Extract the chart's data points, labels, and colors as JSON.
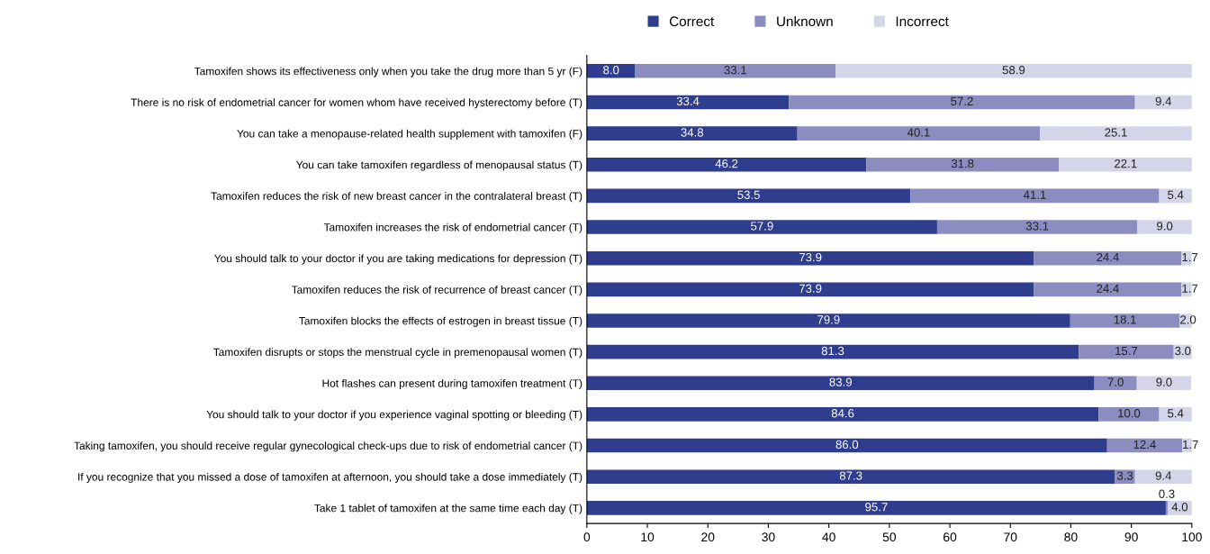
{
  "chart_data": {
    "type": "bar",
    "orientation": "horizontal",
    "stacked": true,
    "legend": "top",
    "grid": false,
    "categories": [
      "Tamoxifen shows its effectiveness only when you take the drug more than 5 yr (F)",
      "There is no risk of endometrial cancer for women whom have received hysterectomy before (T)",
      "You can take a menopause-related health supplement with tamoxifen (F)",
      "You can take tamoxifen regardless of menopausal status (T)",
      "Tamoxifen reduces the risk of new breast cancer in the contralateral breast (T)",
      "Tamoxifen increases the risk of endometrial cancer (T)",
      "You should talk to your doctor if you are taking medications for depression (T)",
      "Tamoxifen reduces the risk of recurrence of breast cancer (T)",
      "Tamoxifen blocks the effects of estrogen in breast tissue (T)",
      "Tamoxifen disrupts or stops the menstrual cycle in premenopausal women (T)",
      "Hot flashes can present during tamoxifen treatment (T)",
      "You should talk to your doctor if you experience vaginal spotting or bleeding (T)",
      "Taking tamoxifen, you should receive regular gynecological check-ups due to risk of endometrial cancer (T)",
      "If you recognize that you missed a dose of tamoxifen at afternoon, you should take a dose immediately (T)",
      "Take 1 tablet of tamoxifen at the same time each day (T)"
    ],
    "series": [
      {
        "name": "Correct",
        "color": "#2e3d8e",
        "values": [
          8.0,
          33.4,
          34.8,
          46.2,
          53.5,
          57.9,
          73.9,
          73.9,
          79.9,
          81.3,
          83.9,
          84.6,
          86.0,
          87.3,
          95.7
        ],
        "value_labels": [
          "8.0",
          "33.4",
          "34.8",
          "46.2",
          "53.5",
          "57.9",
          "73.9",
          "73.9",
          "79.9",
          "81.3",
          "83.9",
          "84.6",
          "86.0",
          "87.3",
          "95.7"
        ]
      },
      {
        "name": "Unknown",
        "color": "#8b8dc1",
        "values": [
          33.1,
          57.2,
          40.1,
          31.8,
          41.1,
          33.1,
          24.4,
          24.4,
          18.1,
          15.7,
          7.0,
          10.0,
          12.4,
          3.3,
          0.3
        ],
        "value_labels": [
          "33.1",
          "57.2",
          "40.1",
          "31.8",
          "41.1",
          "33.1",
          "24.4",
          "24.4",
          "18.1",
          "15.7",
          "7.0",
          "10.0",
          "12.4",
          "3.3",
          "0.3"
        ]
      },
      {
        "name": "Incorrect",
        "color": "#d4d5e8",
        "values": [
          58.9,
          9.4,
          25.1,
          22.1,
          5.4,
          9.0,
          1.7,
          1.7,
          2.0,
          3.0,
          9.0,
          5.4,
          1.7,
          9.4,
          4.0
        ],
        "value_labels": [
          "58.9",
          "9.4",
          "25.1",
          "22.1",
          "5.4",
          "9.0",
          "1.7",
          "1.7",
          "2.0",
          "3.0",
          "9.0",
          "5.4",
          "1.7",
          "9.4",
          "4.0"
        ]
      }
    ],
    "xlim": [
      0,
      100
    ],
    "xticks": [
      0,
      10,
      20,
      30,
      40,
      50,
      60,
      70,
      80,
      90,
      100
    ]
  }
}
